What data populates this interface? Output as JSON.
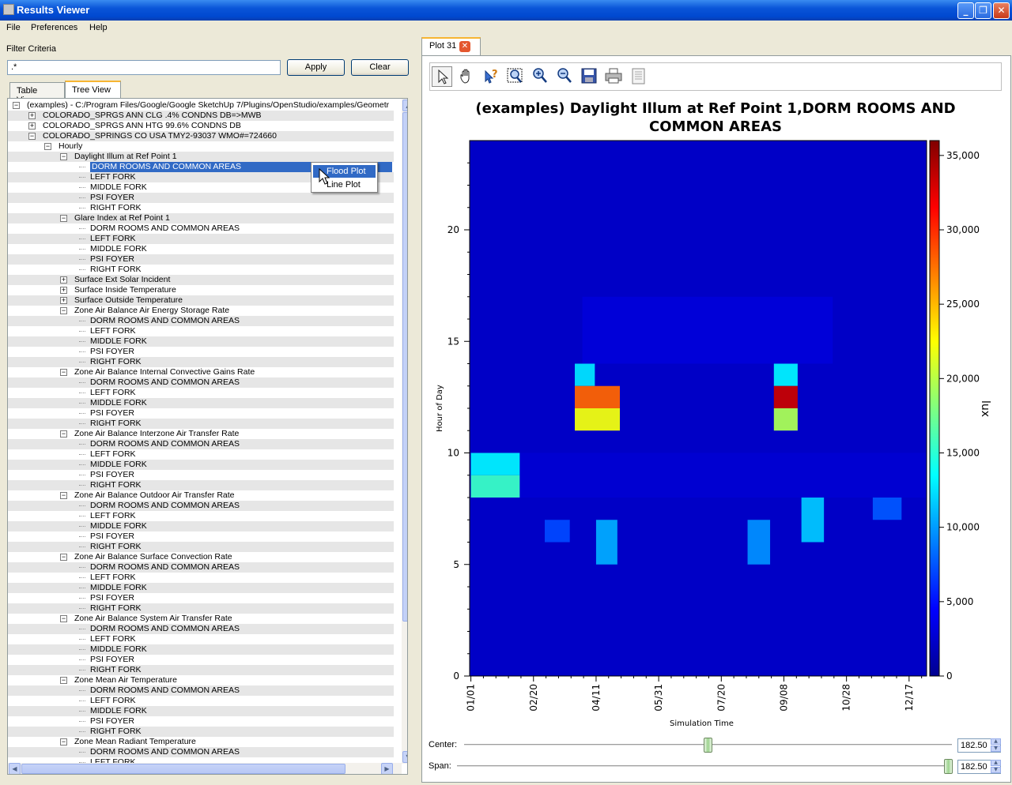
{
  "window": {
    "title": "Results Viewer",
    "min": "_",
    "max": "❐",
    "close": "✕"
  },
  "menu": [
    "File",
    "Preferences",
    "Help"
  ],
  "filter": {
    "label": "Filter Criteria",
    "value": ".*",
    "apply": "Apply",
    "clear": "Clear"
  },
  "tabs": {
    "table": "Table View",
    "tree": "Tree View"
  },
  "tree": [
    {
      "text": "(examples) - C:/Program Files/Google/Google SketchUp 7/Plugins/OpenStudio/examples/Geometr",
      "level": 0,
      "exp": "minus"
    },
    {
      "text": "COLORADO_SPRGS ANN CLG .4% CONDNS DB=>MWB",
      "level": 1,
      "exp": "plus"
    },
    {
      "text": "COLORADO_SPRGS ANN HTG 99.6% CONDNS DB",
      "level": 1,
      "exp": "plus"
    },
    {
      "text": "COLORADO_SPRINGS CO USA TMY2-93037 WMO#=724660",
      "level": 1,
      "exp": "minus"
    },
    {
      "text": "Hourly",
      "level": 2,
      "exp": "minus"
    },
    {
      "text": "Daylight Illum at Ref Point 1",
      "level": 3,
      "exp": "minus"
    },
    {
      "text": "DORM ROOMS AND COMMON AREAS",
      "level": 4,
      "selected": true
    },
    {
      "text": "LEFT FORK",
      "level": 4
    },
    {
      "text": "MIDDLE FORK",
      "level": 4
    },
    {
      "text": "PSI FOYER",
      "level": 4
    },
    {
      "text": "RIGHT FORK",
      "level": 4
    },
    {
      "text": "Glare Index at Ref Point 1",
      "level": 3,
      "exp": "minus"
    },
    {
      "text": "DORM ROOMS AND COMMON AREAS",
      "level": 4
    },
    {
      "text": "LEFT FORK",
      "level": 4
    },
    {
      "text": "MIDDLE FORK",
      "level": 4
    },
    {
      "text": "PSI FOYER",
      "level": 4
    },
    {
      "text": "RIGHT FORK",
      "level": 4
    },
    {
      "text": "Surface Ext Solar Incident",
      "level": 3,
      "exp": "plus"
    },
    {
      "text": "Surface Inside Temperature",
      "level": 3,
      "exp": "plus"
    },
    {
      "text": "Surface Outside Temperature",
      "level": 3,
      "exp": "plus"
    },
    {
      "text": "Zone Air Balance Air Energy Storage Rate",
      "level": 3,
      "exp": "minus"
    },
    {
      "text": "DORM ROOMS AND COMMON AREAS",
      "level": 4
    },
    {
      "text": "LEFT FORK",
      "level": 4
    },
    {
      "text": "MIDDLE FORK",
      "level": 4
    },
    {
      "text": "PSI FOYER",
      "level": 4
    },
    {
      "text": "RIGHT FORK",
      "level": 4
    },
    {
      "text": "Zone Air Balance Internal Convective Gains Rate",
      "level": 3,
      "exp": "minus"
    },
    {
      "text": "DORM ROOMS AND COMMON AREAS",
      "level": 4
    },
    {
      "text": "LEFT FORK",
      "level": 4
    },
    {
      "text": "MIDDLE FORK",
      "level": 4
    },
    {
      "text": "PSI FOYER",
      "level": 4
    },
    {
      "text": "RIGHT FORK",
      "level": 4
    },
    {
      "text": "Zone Air Balance Interzone Air Transfer Rate",
      "level": 3,
      "exp": "minus"
    },
    {
      "text": "DORM ROOMS AND COMMON AREAS",
      "level": 4
    },
    {
      "text": "LEFT FORK",
      "level": 4
    },
    {
      "text": "MIDDLE FORK",
      "level": 4
    },
    {
      "text": "PSI FOYER",
      "level": 4
    },
    {
      "text": "RIGHT FORK",
      "level": 4
    },
    {
      "text": "Zone Air Balance Outdoor Air Transfer Rate",
      "level": 3,
      "exp": "minus"
    },
    {
      "text": "DORM ROOMS AND COMMON AREAS",
      "level": 4
    },
    {
      "text": "LEFT FORK",
      "level": 4
    },
    {
      "text": "MIDDLE FORK",
      "level": 4
    },
    {
      "text": "PSI FOYER",
      "level": 4
    },
    {
      "text": "RIGHT FORK",
      "level": 4
    },
    {
      "text": "Zone Air Balance Surface Convection Rate",
      "level": 3,
      "exp": "minus"
    },
    {
      "text": "DORM ROOMS AND COMMON AREAS",
      "level": 4
    },
    {
      "text": "LEFT FORK",
      "level": 4
    },
    {
      "text": "MIDDLE FORK",
      "level": 4
    },
    {
      "text": "PSI FOYER",
      "level": 4
    },
    {
      "text": "RIGHT FORK",
      "level": 4
    },
    {
      "text": "Zone Air Balance System Air Transfer Rate",
      "level": 3,
      "exp": "minus"
    },
    {
      "text": "DORM ROOMS AND COMMON AREAS",
      "level": 4
    },
    {
      "text": "LEFT FORK",
      "level": 4
    },
    {
      "text": "MIDDLE FORK",
      "level": 4
    },
    {
      "text": "PSI FOYER",
      "level": 4
    },
    {
      "text": "RIGHT FORK",
      "level": 4
    },
    {
      "text": "Zone Mean Air Temperature",
      "level": 3,
      "exp": "minus"
    },
    {
      "text": "DORM ROOMS AND COMMON AREAS",
      "level": 4
    },
    {
      "text": "LEFT FORK",
      "level": 4
    },
    {
      "text": "MIDDLE FORK",
      "level": 4
    },
    {
      "text": "PSI FOYER",
      "level": 4
    },
    {
      "text": "RIGHT FORK",
      "level": 4
    },
    {
      "text": "Zone Mean Radiant Temperature",
      "level": 3,
      "exp": "minus"
    },
    {
      "text": "DORM ROOMS AND COMMON AREAS",
      "level": 4
    },
    {
      "text": "LEFT FORK",
      "level": 4
    }
  ],
  "context_menu": [
    "Flood Plot",
    "Line Plot"
  ],
  "plot_tab": {
    "label": "Plot 31",
    "close": "✕"
  },
  "toolbar_icons": [
    "select-arrow-icon",
    "pan-hand-icon",
    "query-icon",
    "zoom-box-icon",
    "zoom-in-icon",
    "zoom-out-icon",
    "save-icon",
    "print-icon",
    "document-icon"
  ],
  "sliders": {
    "center_label": "Center:",
    "center_value": "182.50",
    "center_fraction": 0.5,
    "span_label": "Span:",
    "span_value": "182.50",
    "span_fraction": 1.0
  },
  "colors": {
    "accent": "#316ac5",
    "heatmap_base": "#0b1f9a"
  },
  "chart_data": {
    "type": "heatmap",
    "title": "(examples) Daylight Illum at Ref Point 1,DORM ROOMS AND COMMON AREAS",
    "xlabel": "Simulation Time",
    "ylabel": "Hour of Day",
    "colorbar_label": "lux",
    "colormap": "jet",
    "x_ticks": [
      "01/01",
      "02/20",
      "04/11",
      "05/31",
      "07/20",
      "09/08",
      "10/28",
      "12/17"
    ],
    "x_tick_days": [
      1,
      51,
      101,
      151,
      201,
      251,
      301,
      351
    ],
    "xlim": [
      0,
      365
    ],
    "y_ticks": [
      "0",
      "5",
      "10",
      "15",
      "20"
    ],
    "ylim": [
      0,
      24
    ],
    "colorbar_ticks": [
      "0",
      "5,000",
      "10,000",
      "15,000",
      "20,000",
      "25,000",
      "30,000",
      "35,000"
    ],
    "zlim": [
      0,
      36000
    ],
    "base_value": 2200,
    "hot_spots": [
      {
        "days": [
          1,
          40
        ],
        "hours": [
          8,
          9
        ],
        "value": 15500
      },
      {
        "days": [
          1,
          40
        ],
        "hours": [
          9,
          10
        ],
        "value": 13000
      },
      {
        "days": [
          60,
          80
        ],
        "hours": [
          6,
          7
        ],
        "value": 7000
      },
      {
        "days": [
          84,
          100
        ],
        "hours": [
          13,
          14
        ],
        "value": 12500
      },
      {
        "days": [
          84,
          120
        ],
        "hours": [
          12,
          13
        ],
        "value": 28000
      },
      {
        "days": [
          84,
          120
        ],
        "hours": [
          11,
          12
        ],
        "value": 22000
      },
      {
        "days": [
          101,
          118
        ],
        "hours": [
          5,
          7
        ],
        "value": 10500
      },
      {
        "days": [
          222,
          240
        ],
        "hours": [
          5,
          7
        ],
        "value": 9500
      },
      {
        "days": [
          243,
          262
        ],
        "hours": [
          13,
          14
        ],
        "value": 13000
      },
      {
        "days": [
          243,
          262
        ],
        "hours": [
          12,
          13
        ],
        "value": 33500
      },
      {
        "days": [
          243,
          262
        ],
        "hours": [
          11,
          12
        ],
        "value": 19500
      },
      {
        "days": [
          265,
          283
        ],
        "hours": [
          6,
          8
        ],
        "value": 11500
      },
      {
        "days": [
          322,
          345
        ],
        "hours": [
          7,
          8
        ],
        "value": 7500
      },
      {
        "days": [
          90,
          290
        ],
        "hours": [
          14,
          17
        ],
        "value": 4200
      },
      {
        "days": [
          40,
          365
        ],
        "hours": [
          8,
          10
        ],
        "value": 3500
      }
    ]
  }
}
